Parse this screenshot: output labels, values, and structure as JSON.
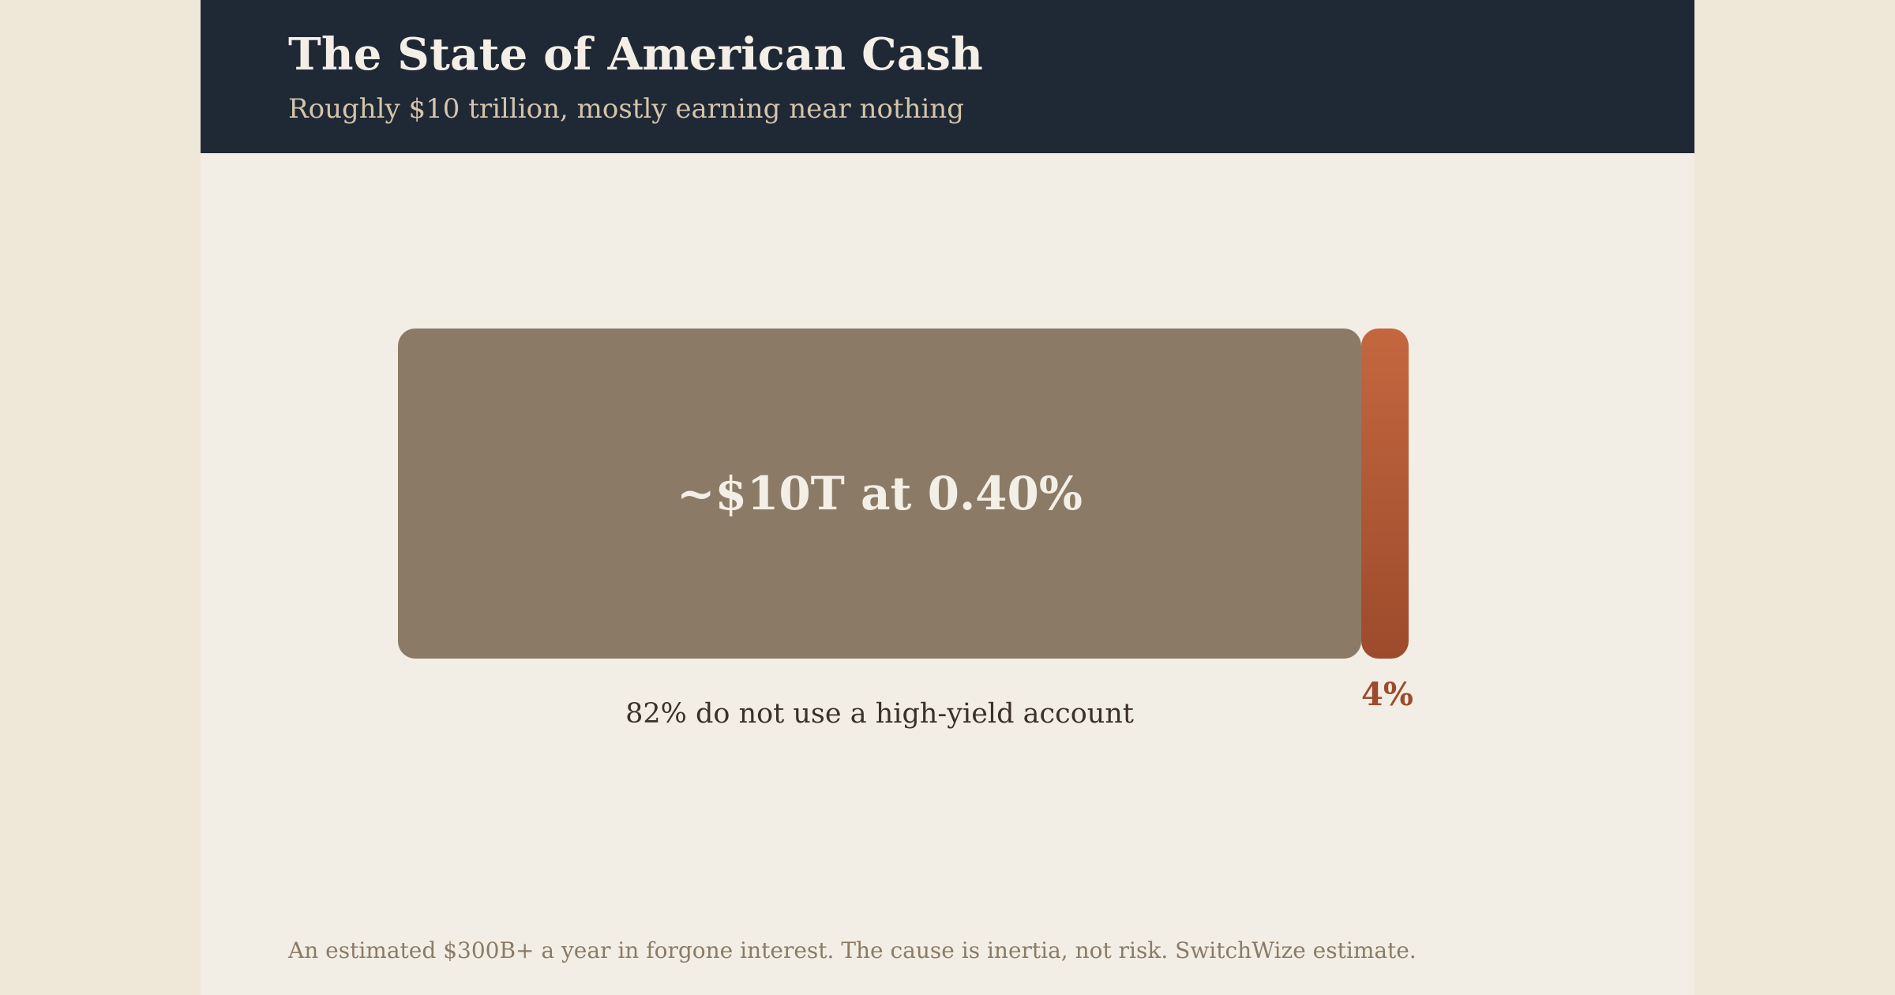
{
  "header": {
    "title": "The State of American Cash",
    "subtitle": "Roughly $10 trillion, mostly earning near nothing"
  },
  "chart_data": {
    "type": "bar",
    "orientation": "horizontal-stacked",
    "title": "The State of American Cash",
    "subtitle": "Roughly $10 trillion, mostly earning near nothing",
    "series": [
      {
        "bar_label": "~$10T at 0.40%",
        "caption": "82% do not use a high-yield account",
        "value": 82,
        "color": "#8b7b66"
      },
      {
        "bar_label": "",
        "caption": "4%",
        "value": 4,
        "color": "#b45a36"
      }
    ],
    "total": 100,
    "grid": false,
    "legend": "none"
  },
  "footnote": "An estimated $300B+ a year in forgone interest. The cause is inertia, not risk. SwitchWize estimate."
}
